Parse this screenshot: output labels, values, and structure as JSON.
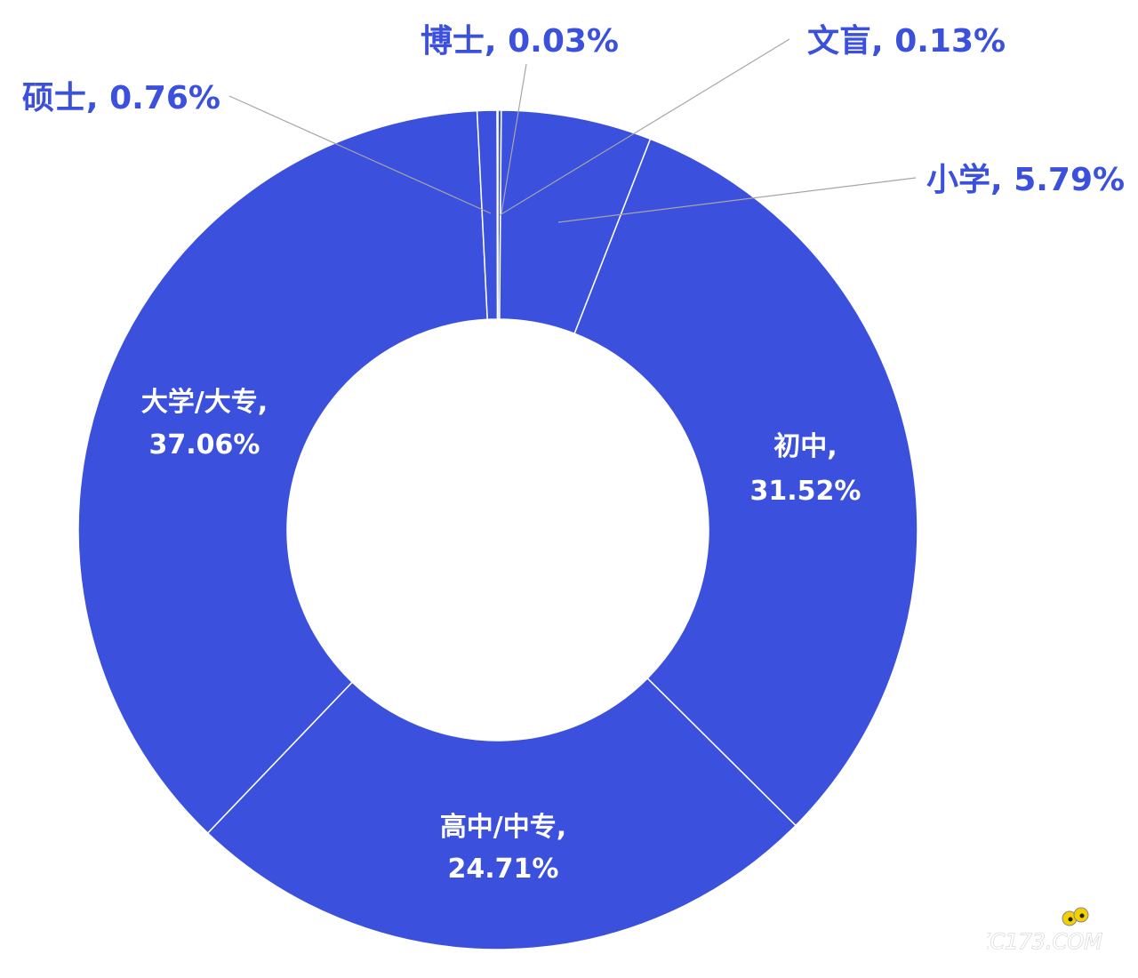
{
  "chart_data": {
    "type": "pie",
    "variant": "donut",
    "title": "",
    "slices": [
      {
        "name": "文盲",
        "value": 0.13,
        "label": "0.13%"
      },
      {
        "name": "小学",
        "value": 5.79,
        "label": "5.79%"
      },
      {
        "name": "初中",
        "value": 31.52,
        "label": "31.52%"
      },
      {
        "name": "高中/中专",
        "value": 24.71,
        "label": "24.71%"
      },
      {
        "name": "大学/大专",
        "value": 37.06,
        "label": "37.06%"
      },
      {
        "name": "硕士",
        "value": 0.76,
        "label": "0.76%"
      },
      {
        "name": "博士",
        "value": 0.03,
        "label": "0.03%"
      }
    ],
    "colors": {
      "slice": "#3b50dc",
      "outside_label": "#3b50dc",
      "inside_label": "#ffffff",
      "leader": "#a6a6a6"
    },
    "legend": "none"
  },
  "watermark": {
    "text": "ZC173.COM",
    "icon": "eyes-icon",
    "color": "#f5d000"
  }
}
